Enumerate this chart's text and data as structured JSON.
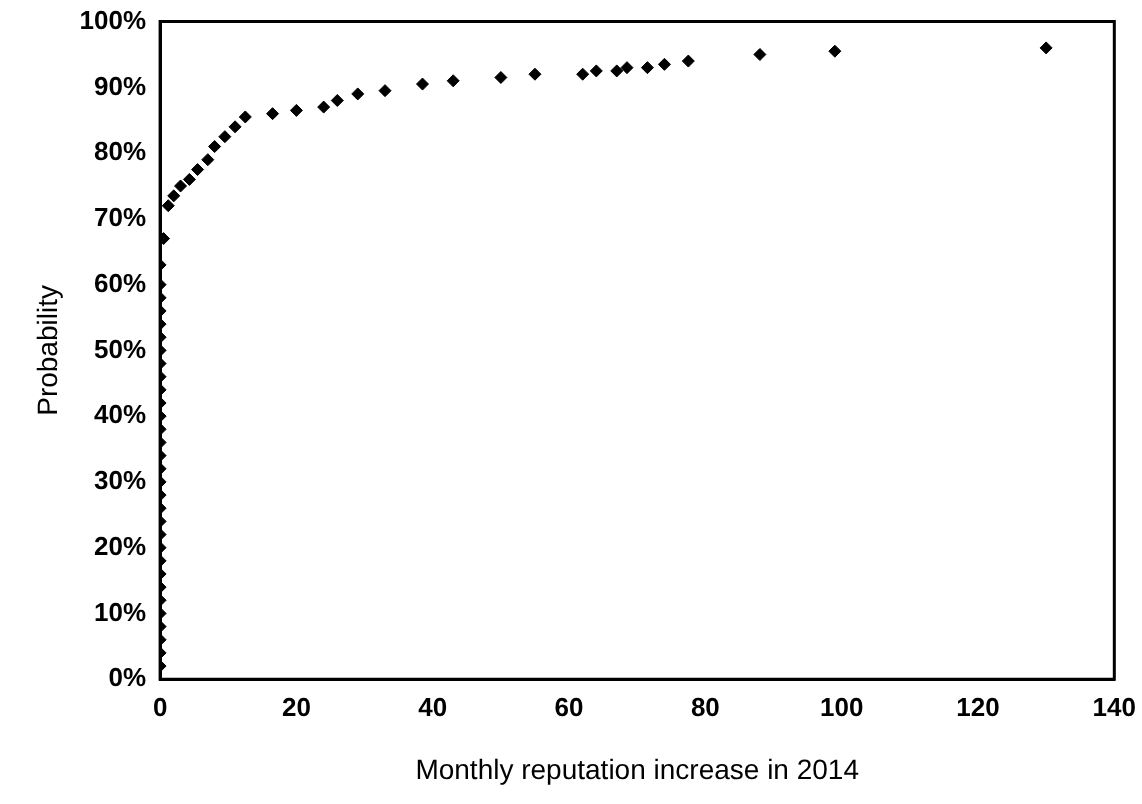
{
  "chart_data": {
    "type": "scatter",
    "xlabel": "Monthly reputation increase in 2014",
    "ylabel": "Probability",
    "x": [
      0,
      0,
      0,
      0,
      0,
      0,
      0,
      0,
      0,
      0,
      0,
      0,
      0,
      0,
      0,
      0,
      0,
      0,
      0,
      0,
      0,
      0,
      0,
      0,
      0,
      0,
      0,
      0,
      0,
      0,
      0,
      0.5,
      1.2,
      2,
      3,
      4.3,
      5.5,
      7,
      8,
      9.5,
      11,
      12.5,
      16.5,
      20,
      24,
      26,
      29,
      33,
      38.5,
      43,
      50,
      55,
      62,
      64,
      67,
      68.5,
      71.5,
      74,
      77.5,
      88,
      99,
      130
    ],
    "values": [
      2,
      4,
      6,
      8,
      10,
      12,
      14,
      16,
      18,
      20,
      22,
      24,
      26,
      28,
      30,
      32,
      34,
      36,
      38,
      40,
      42,
      44,
      46,
      48,
      50,
      52,
      54,
      56,
      58,
      60,
      63,
      67,
      72,
      73.5,
      75,
      76,
      77.5,
      79,
      81,
      82.5,
      84,
      85.5,
      86,
      86.5,
      87,
      88,
      89,
      89.5,
      90.5,
      91,
      91.5,
      92,
      92,
      92.5,
      92.5,
      93,
      93,
      93.5,
      94,
      95,
      95.5,
      96
    ],
    "color": "#000000",
    "marker": "diamond",
    "grid": false,
    "legend": false,
    "xlim": [
      0,
      140
    ],
    "xticks": [
      0,
      20,
      40,
      60,
      80,
      100,
      120,
      140
    ],
    "ylim": [
      0,
      100
    ],
    "yticks": [
      {
        "value": 0,
        "label": "0%"
      },
      {
        "value": 10,
        "label": "10%"
      },
      {
        "value": 20,
        "label": "20%"
      },
      {
        "value": 30,
        "label": "30%"
      },
      {
        "value": 40,
        "label": "40%"
      },
      {
        "value": 50,
        "label": "50%"
      },
      {
        "value": 60,
        "label": "60%"
      },
      {
        "value": 70,
        "label": "70%"
      },
      {
        "value": 80,
        "label": "80%"
      },
      {
        "value": 90,
        "label": "90%"
      },
      {
        "value": 100,
        "label": "100%"
      }
    ]
  }
}
